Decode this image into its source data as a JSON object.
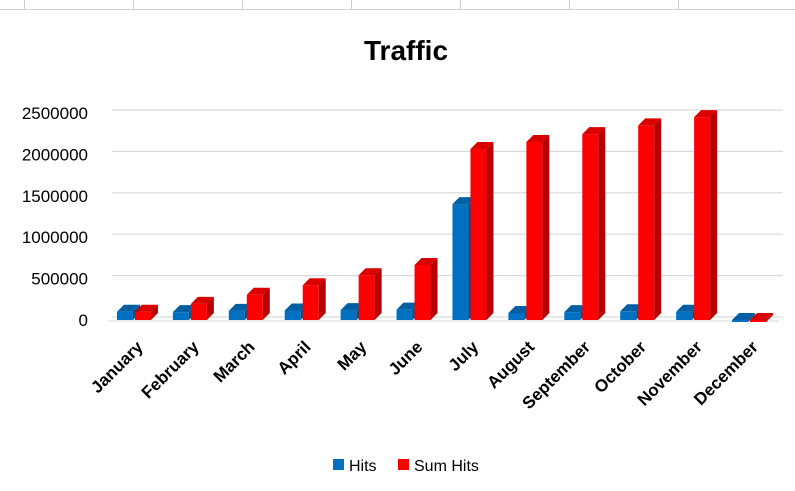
{
  "chart_data": {
    "type": "bar",
    "title": "Traffic",
    "xlabel": "",
    "ylabel": "",
    "categories": [
      "January",
      "February",
      "March",
      "April",
      "May",
      "June",
      "July",
      "August",
      "September",
      "October",
      "November",
      "December"
    ],
    "series": [
      {
        "name": "Hits",
        "color": "#0070c0",
        "values": [
          100000,
          95000,
          110000,
          115000,
          120000,
          125000,
          1400000,
          85000,
          95000,
          105000,
          100000,
          0
        ]
      },
      {
        "name": "Sum Hits",
        "color": "#ff0000",
        "values": [
          100000,
          195000,
          305000,
          420000,
          540000,
          665000,
          2065000,
          2150000,
          2245000,
          2350000,
          2450000,
          0
        ]
      }
    ],
    "ylim": [
      0,
      2500000
    ],
    "yticks": [
      0,
      500000,
      1000000,
      1500000,
      2000000,
      2500000
    ],
    "grid": true,
    "legend_position": "bottom",
    "bar_style": "3d-column"
  }
}
